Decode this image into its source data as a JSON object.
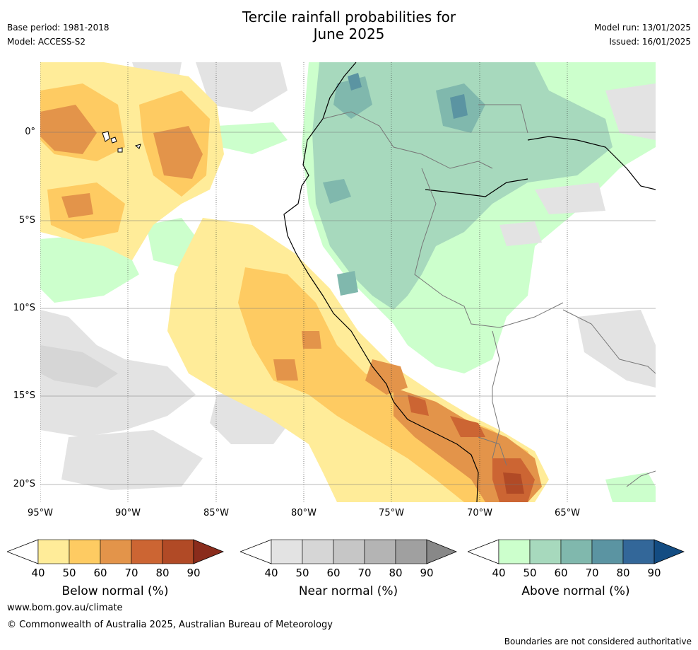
{
  "title": {
    "line1": "Tercile rainfall probabilities for",
    "line2": "June 2025"
  },
  "meta": {
    "base_period": "Base period: 1981-2018",
    "model": "Model: ACCESS-S2",
    "model_run": "Model run: 13/01/2025",
    "issued": "Issued: 16/01/2025"
  },
  "map": {
    "lat_labels": [
      "0°",
      "5°S",
      "10°S",
      "15°S",
      "20°S"
    ],
    "lon_labels": [
      "95°W",
      "90°W",
      "85°W",
      "80°W",
      "75°W",
      "70°W",
      "65°W"
    ]
  },
  "colorbars": [
    {
      "title": "Below normal (%)",
      "ticks": [
        "40",
        "50",
        "60",
        "70",
        "80",
        "90"
      ],
      "colors": [
        "#ffec99",
        "#fecb62",
        "#e3944a",
        "#cc6533",
        "#b14a26",
        "#8a2c1c"
      ]
    },
    {
      "title": "Near normal (%)",
      "ticks": [
        "40",
        "50",
        "60",
        "70",
        "80",
        "90"
      ],
      "colors": [
        "#e3e3e3",
        "#d6d6d6",
        "#c6c6c6",
        "#b4b4b4",
        "#a0a0a0",
        "#888888"
      ]
    },
    {
      "title": "Above normal (%)",
      "ticks": [
        "40",
        "50",
        "60",
        "70",
        "80",
        "90"
      ],
      "colors": [
        "#ccffcc",
        "#a7d9bd",
        "#80b8ad",
        "#5b94a2",
        "#336799",
        "#134c82"
      ]
    }
  ],
  "footer": {
    "url": "www.bom.gov.au/climate",
    "copyright": "© Commonwealth of Australia 2025, Australian Bureau of Meteorology",
    "note": "Boundaries are not considered authoritative"
  }
}
